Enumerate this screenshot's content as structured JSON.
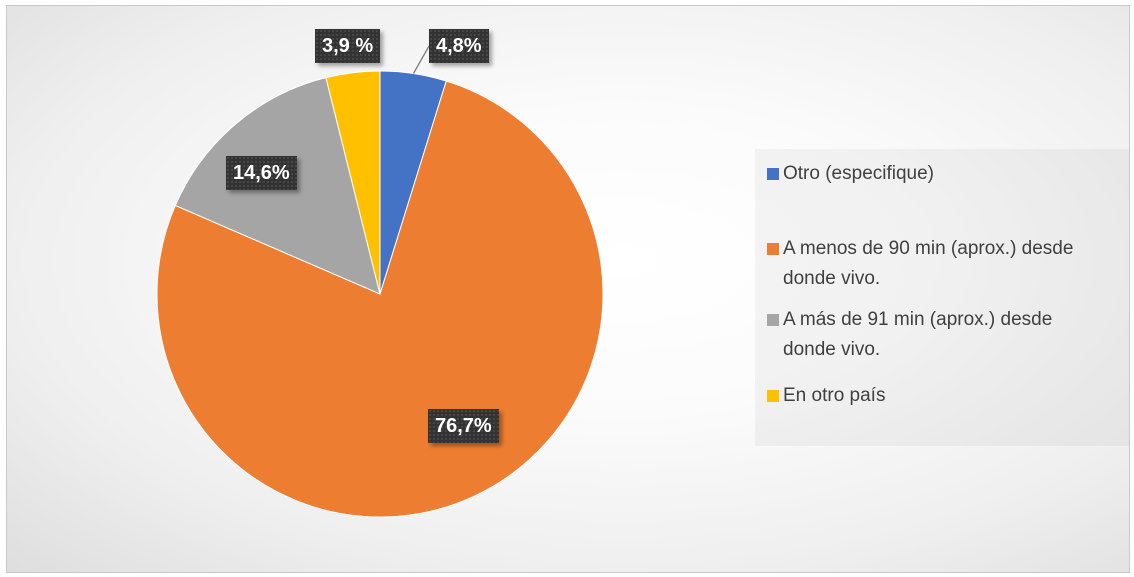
{
  "chart_data": {
    "type": "pie",
    "start_angle_deg": 0,
    "direction": "clockwise",
    "slices": [
      {
        "name": "Otro (especifique)",
        "value": 4.8,
        "label": "4,8%",
        "color": "#4472C4"
      },
      {
        "name": "A menos de 90 min (aprox.) desde donde vivo.",
        "value": 76.7,
        "label": "76,7%",
        "color": "#ED7D31"
      },
      {
        "name": "A más de 91 min (aprox.) desde donde vivo.",
        "value": 14.6,
        "label": "14,6%",
        "color": "#A5A5A5"
      },
      {
        "name": "En otro país",
        "value": 3.9,
        "label": "3,9 %",
        "color": "#FFC000"
      }
    ],
    "legend_position": "right",
    "data_label_style": "white bold text on dark box"
  },
  "legend": {
    "items": [
      {
        "lines": [
          "Otro (especifique)"
        ]
      },
      {
        "lines": [
          "A menos de 90 min (aprox.) desde",
          "donde vivo."
        ]
      },
      {
        "lines": [
          "A más de 91 min (aprox.) desde",
          "donde vivo."
        ]
      },
      {
        "lines": [
          "En otro país"
        ]
      }
    ]
  }
}
